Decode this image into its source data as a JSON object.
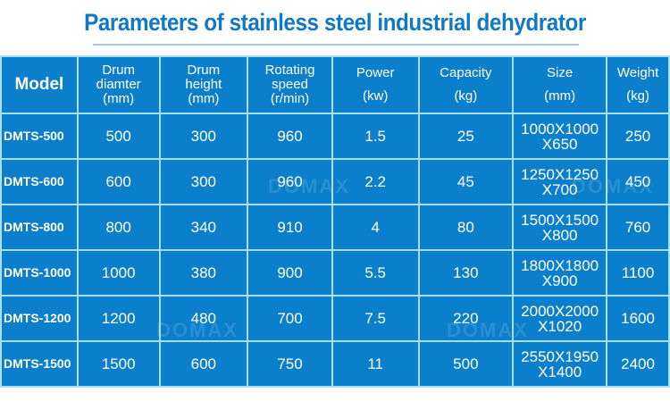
{
  "title": "Parameters of stainless steel industrial dehydrator",
  "watermark": "DOMAX",
  "colors": {
    "title": "#1178c4",
    "table_bg": "#0b7fcc",
    "border": "#a9def2"
  },
  "headers": [
    [
      "Model"
    ],
    [
      "Drum",
      "diamter",
      "(mm)"
    ],
    [
      "Drum",
      "height",
      "(mm)"
    ],
    [
      "Rotating",
      "speed",
      "(r/min)"
    ],
    [
      "Power",
      "(kw)"
    ],
    [
      "Capacity",
      "(kg)"
    ],
    [
      "Size",
      "(mm)"
    ],
    [
      "Weight",
      "(kg)"
    ]
  ],
  "rows": [
    [
      "DMTS-500",
      "500",
      "300",
      "960",
      "1.5",
      "25",
      [
        "1000X1000",
        "X650"
      ],
      "250"
    ],
    [
      "DMTS-600",
      "600",
      "300",
      "960",
      "2.2",
      "45",
      [
        "1250X1250",
        "X700"
      ],
      "450"
    ],
    [
      "DMTS-800",
      "800",
      "340",
      "910",
      "4",
      "80",
      [
        "1500X1500",
        "X800"
      ],
      "760"
    ],
    [
      "DMTS-1000",
      "1000",
      "380",
      "900",
      "5.5",
      "130",
      [
        "1800X1800",
        "X900"
      ],
      "1100"
    ],
    [
      "DMTS-1200",
      "1200",
      "480",
      "700",
      "7.5",
      "220",
      [
        "2000X2000",
        "X1020"
      ],
      "1600"
    ],
    [
      "DMTS-1500",
      "1500",
      "600",
      "750",
      "11",
      "500",
      [
        "2550X1950",
        "X1400"
      ],
      "2400"
    ]
  ]
}
